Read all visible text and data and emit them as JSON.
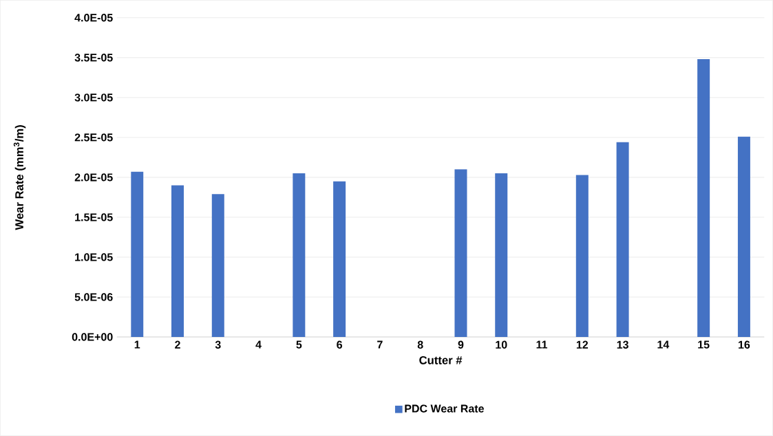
{
  "chart_data": {
    "type": "bar",
    "xlabel": "Cutter #",
    "ylabel": "Wear Rate (mm$^{3}$/m)",
    "categories": [
      "1",
      "2",
      "3",
      "4",
      "5",
      "6",
      "7",
      "8",
      "9",
      "10",
      "11",
      "12",
      "13",
      "14",
      "15",
      "16"
    ],
    "series": [
      {
        "name": "PDC Wear Rate",
        "color": "#4472c4",
        "values": [
          2.07e-05,
          1.9e-05,
          1.79e-05,
          null,
          2.05e-05,
          1.95e-05,
          null,
          null,
          2.1e-05,
          2.05e-05,
          null,
          2.03e-05,
          2.44e-05,
          null,
          3.48e-05,
          2.51e-05
        ]
      }
    ],
    "ylim": [
      0,
      4e-05
    ],
    "yticks": [
      {
        "value": 0,
        "label": "0.0E+00"
      },
      {
        "value": 5e-06,
        "label": "5.0E-06"
      },
      {
        "value": 1e-05,
        "label": "1.0E-05"
      },
      {
        "value": 1.5e-05,
        "label": "1.5E-05"
      },
      {
        "value": 2e-05,
        "label": "2.0E-05"
      },
      {
        "value": 2.5e-05,
        "label": "2.5E-05"
      },
      {
        "value": 3e-05,
        "label": "3.0E-05"
      },
      {
        "value": 3.5e-05,
        "label": "3.5E-05"
      },
      {
        "value": 4e-05,
        "label": "4.0E-05"
      }
    ],
    "grid": "y",
    "legend": "bottom"
  }
}
